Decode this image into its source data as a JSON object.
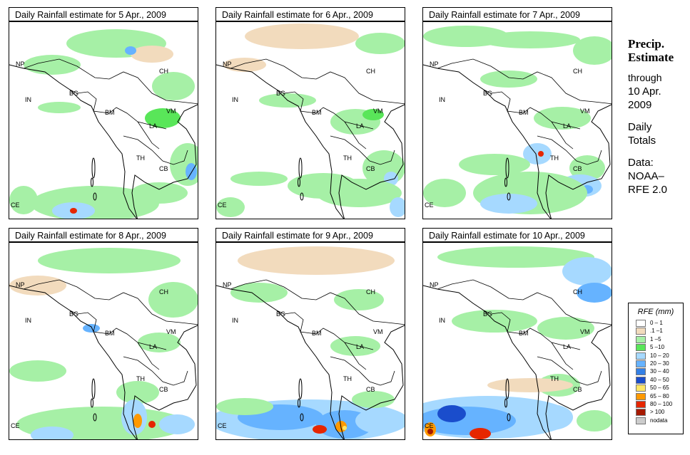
{
  "panels": [
    {
      "title": "Daily Rainfall estimate for  5 Apr., 2009"
    },
    {
      "title": "Daily Rainfall estimate for  6 Apr., 2009"
    },
    {
      "title": "Daily Rainfall estimate for  7 Apr., 2009"
    },
    {
      "title": "Daily Rainfall estimate for  8 Apr., 2009"
    },
    {
      "title": "Daily Rainfall estimate for  9 Apr., 2009"
    },
    {
      "title": "Daily Rainfall estimate for  10 Apr., 2009"
    }
  ],
  "map_labels": {
    "np": "NP",
    "ch": "CH",
    "in": "IN",
    "bg": "BG",
    "bm": "BM",
    "vm": "VM",
    "la": "LA",
    "th": "TH",
    "cb": "CB",
    "ce": "CE"
  },
  "sidebar": {
    "title_line1": "Precip.",
    "title_line2": "Estimate",
    "through": "through",
    "date_line1": "10 Apr.",
    "date_line2": "2009",
    "totals_line1": "Daily",
    "totals_line2": "Totals",
    "data_line1": "Data:",
    "data_line2": "NOAA–",
    "data_line3": "RFE 2.0"
  },
  "legend": {
    "title": "RFE (mm)",
    "items": [
      {
        "label": "0 – 1",
        "color": "#ffffff"
      },
      {
        "label": ".1 –1",
        "color": "#f2dbbd"
      },
      {
        "label": "1 –5",
        "color": "#a6f0a6"
      },
      {
        "label": "5 –10",
        "color": "#59e659"
      },
      {
        "label": "10 – 20",
        "color": "#a6d9ff"
      },
      {
        "label": "20 – 30",
        "color": "#66b3ff"
      },
      {
        "label": "30 – 40",
        "color": "#3380e6"
      },
      {
        "label": "40 – 50",
        "color": "#1a4dcc"
      },
      {
        "label": "50 – 65",
        "color": "#ffe666"
      },
      {
        "label": "65 – 80",
        "color": "#ff9900"
      },
      {
        "label": "80 – 100",
        "color": "#e62600"
      },
      {
        "label": "> 100",
        "color": "#a61a00"
      },
      {
        "label": "nodata",
        "color": "#cccccc"
      }
    ]
  }
}
